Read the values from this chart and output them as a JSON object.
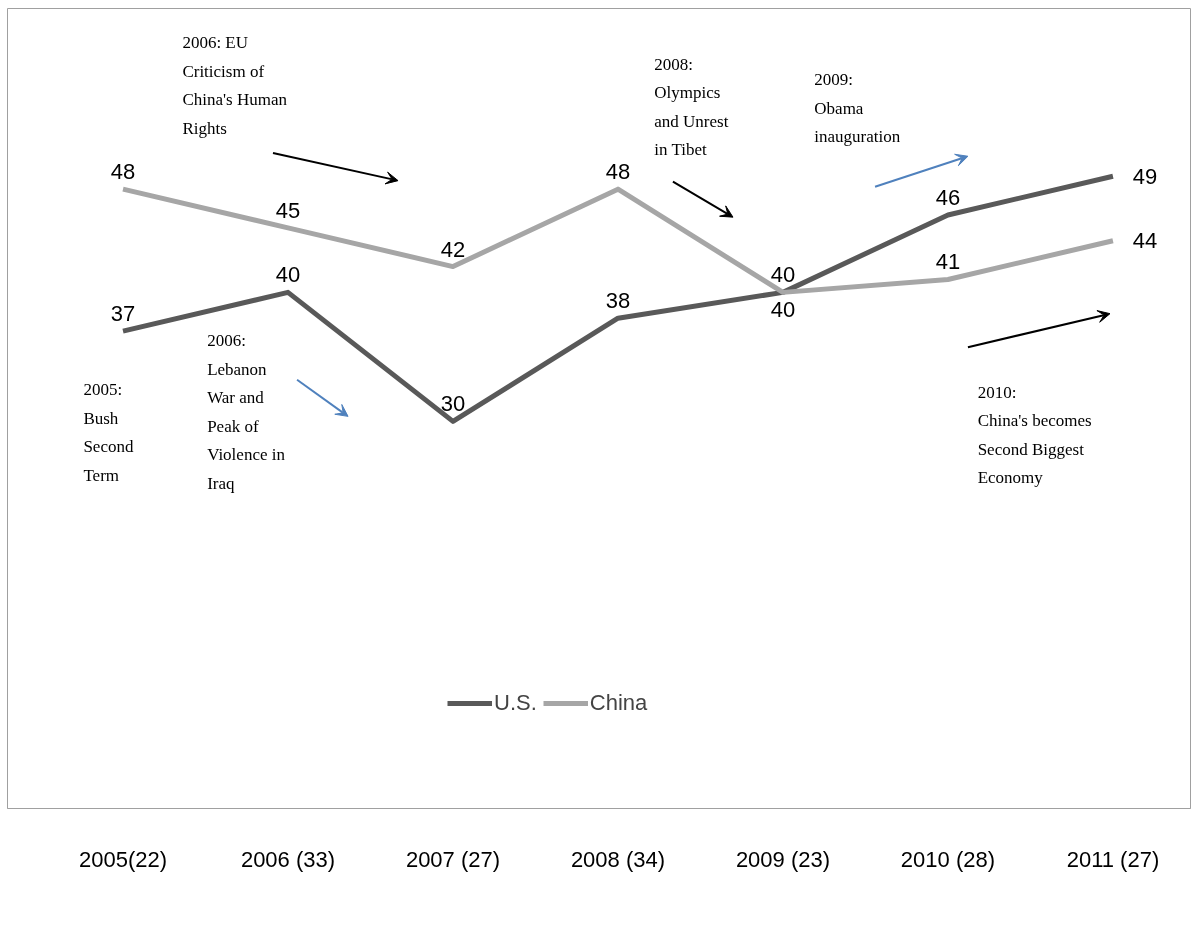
{
  "chart_data": {
    "type": "line",
    "categories": [
      "2005(22)",
      "2006 (33)",
      "2007 (27)",
      "2008 (34)",
      "2009 (23)",
      "2010 (28)",
      "2011 (27)"
    ],
    "series": [
      {
        "name": "U.S.",
        "color": "#595959",
        "values": [
          37,
          40,
          30,
          38,
          40,
          46,
          49
        ]
      },
      {
        "name": "China",
        "color": "#a6a6a6",
        "values": [
          48,
          45,
          42,
          48,
          40,
          41,
          44
        ]
      }
    ],
    "ylim": [
      0,
      62
    ],
    "tick_labels": "x",
    "data_labels": true,
    "legend": "bottom",
    "grid": false,
    "marker": "none",
    "annotations": [
      "2006: EU\nCriticism of\nChina's Human\nRights",
      "2008:\nOlympics\nand Unrest\nin Tibet",
      "2009:\nObama\ninauguration",
      "2005:\nBush\nSecond\nTerm",
      "2006:\nLebanon\nWar and\nPeak of\nViolence in\nIraq",
      "2010:\nChina's  becomes\nSecond Biggest\nEconomy"
    ]
  }
}
